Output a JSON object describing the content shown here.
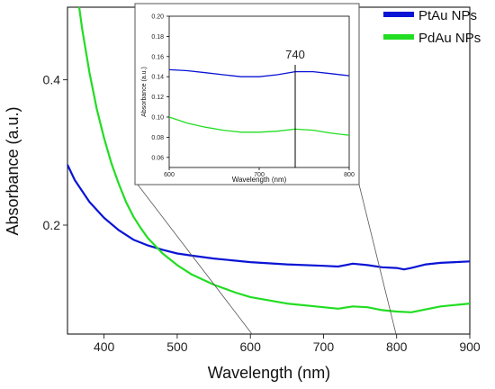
{
  "chart_data": [
    {
      "type": "line",
      "xlabel": "Wavelength (nm)",
      "ylabel": "Absorbance (a.u.)",
      "xlim": [
        350,
        900
      ],
      "ylim": [
        0.05,
        0.5
      ],
      "xticks": [
        400,
        500,
        600,
        700,
        800,
        900
      ],
      "yticks": [
        0.2,
        0.4
      ],
      "legend_position": "top-right",
      "series": [
        {
          "name": "PtAu NPs",
          "color": "#0a14d4",
          "x": [
            350,
            360,
            380,
            400,
            420,
            440,
            460,
            480,
            500,
            520,
            550,
            600,
            650,
            700,
            720,
            740,
            760,
            780,
            800,
            810,
            820,
            840,
            860,
            880,
            900
          ],
          "y": [
            0.283,
            0.262,
            0.232,
            0.21,
            0.193,
            0.18,
            0.172,
            0.166,
            0.161,
            0.158,
            0.154,
            0.149,
            0.146,
            0.144,
            0.143,
            0.147,
            0.145,
            0.142,
            0.141,
            0.139,
            0.141,
            0.146,
            0.148,
            0.149,
            0.15
          ]
        },
        {
          "name": "PdAu NPs",
          "color": "#22dd22",
          "x": [
            366,
            370,
            380,
            390,
            400,
            410,
            420,
            430,
            440,
            450,
            460,
            480,
            500,
            520,
            550,
            580,
            600,
            650,
            700,
            720,
            740,
            760,
            780,
            800,
            820,
            840,
            860,
            880,
            900
          ],
          "y": [
            0.5,
            0.47,
            0.41,
            0.36,
            0.32,
            0.285,
            0.257,
            0.232,
            0.212,
            0.196,
            0.182,
            0.161,
            0.145,
            0.132,
            0.118,
            0.107,
            0.101,
            0.092,
            0.087,
            0.085,
            0.088,
            0.087,
            0.083,
            0.081,
            0.08,
            0.084,
            0.088,
            0.09,
            0.092
          ]
        }
      ]
    },
    {
      "type": "line",
      "xlabel": "Wavelength (nm)",
      "ylabel": "Absorbance (a.u.)",
      "xlim": [
        600,
        800
      ],
      "ylim": [
        0.05,
        0.2
      ],
      "xticks": [
        600,
        700,
        800
      ],
      "yticks": [
        0.06,
        0.08,
        0.1,
        0.12,
        0.14,
        0.16,
        0.18,
        0.2
      ],
      "ytick_labels": [
        "0.06",
        "0.08",
        "0.10",
        "0.12",
        "0.14",
        "0.16",
        "0.18",
        "0.20"
      ],
      "annotation": {
        "text": "740",
        "x": 740
      },
      "series": [
        {
          "color": "#0a14d4",
          "x": [
            600,
            620,
            640,
            660,
            680,
            700,
            720,
            740,
            760,
            780,
            800
          ],
          "y": [
            0.147,
            0.146,
            0.144,
            0.142,
            0.14,
            0.14,
            0.142,
            0.145,
            0.145,
            0.143,
            0.141
          ]
        },
        {
          "color": "#22dd22",
          "x": [
            600,
            620,
            640,
            660,
            680,
            700,
            720,
            740,
            760,
            780,
            800
          ],
          "y": [
            0.1,
            0.094,
            0.09,
            0.087,
            0.085,
            0.085,
            0.086,
            0.088,
            0.087,
            0.084,
            0.082
          ]
        }
      ]
    }
  ]
}
